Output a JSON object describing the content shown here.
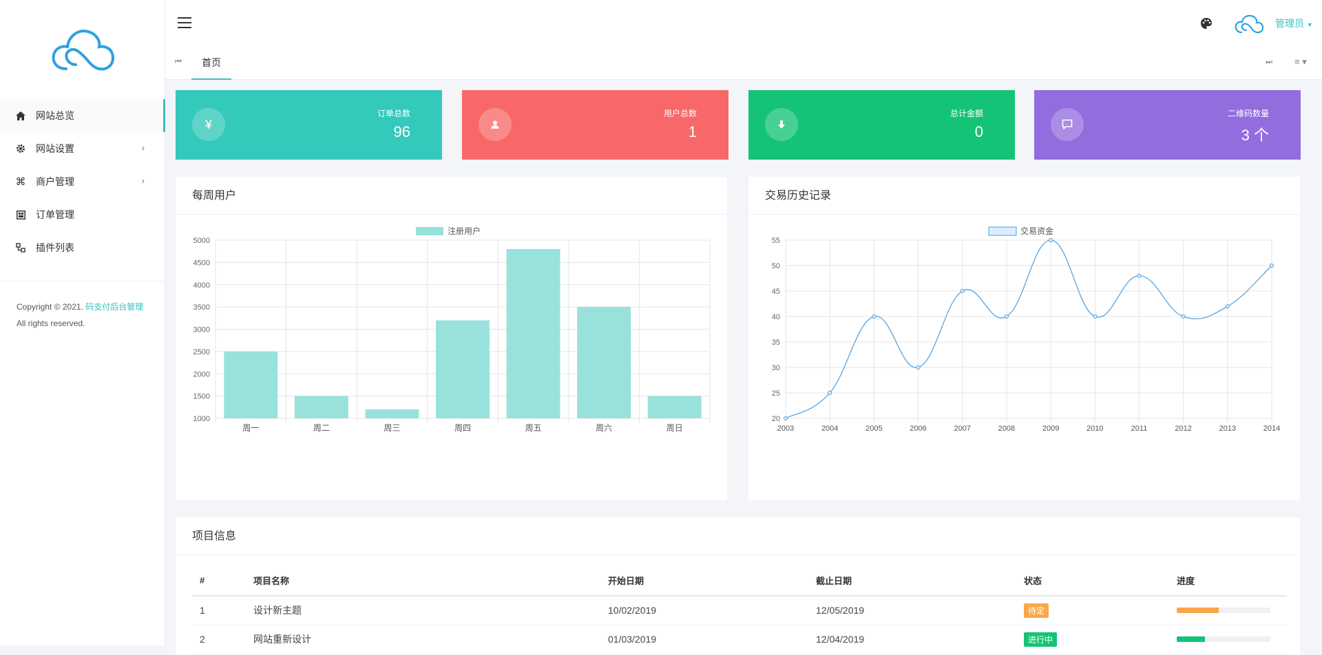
{
  "sidebar": {
    "items": [
      {
        "label": "网站总览",
        "icon": "home-icon",
        "active": true,
        "has_children": false
      },
      {
        "label": "网站设置",
        "icon": "gear-icon",
        "active": false,
        "has_children": true
      },
      {
        "label": "商户管理",
        "icon": "command-icon",
        "active": false,
        "has_children": true
      },
      {
        "label": "订单管理",
        "icon": "grid-icon",
        "active": false,
        "has_children": false
      },
      {
        "label": "插件列表",
        "icon": "plugin-icon",
        "active": false,
        "has_children": false
      }
    ],
    "copyright_prefix": "Copyright © 2021.",
    "copyright_link": "码支付后台管理",
    "copyright_suffix": "All rights reserved."
  },
  "header": {
    "admin_label": "管理员",
    "home_tab": "首页"
  },
  "colors": {
    "accent": "#36c2c0",
    "red": "#f96868",
    "green": "#15c377",
    "purple": "#926dde",
    "warning": "#faa64b"
  },
  "stats": [
    {
      "label": "订单总数",
      "value": "96",
      "icon": "yen-icon",
      "color": "#33cabb"
    },
    {
      "label": "用户总数",
      "value": "1",
      "icon": "user-icon",
      "color": "#f96868"
    },
    {
      "label": "总计金额",
      "value": "0",
      "icon": "download-icon",
      "color": "#15c377"
    },
    {
      "label": "二维码数量",
      "value": "3 个",
      "icon": "comment-icon",
      "color": "#926dde"
    }
  ],
  "charts": {
    "weekly_title": "每周用户",
    "history_title": "交易历史记录"
  },
  "chart_data": [
    {
      "type": "bar",
      "title": "每周用户",
      "categories": [
        "周一",
        "周二",
        "周三",
        "周四",
        "周五",
        "周六",
        "周日"
      ],
      "series": [
        {
          "name": "注册用户",
          "values": [
            2500,
            1500,
            1200,
            3200,
            4800,
            3500,
            1500
          ]
        }
      ],
      "ylim": [
        1000,
        5000
      ],
      "yticks": [
        1000,
        1500,
        2000,
        2500,
        3000,
        3500,
        4000,
        4500,
        5000
      ],
      "grid": true,
      "legend": "top-center"
    },
    {
      "type": "line",
      "title": "交易历史记录",
      "x": [
        "2003",
        "2004",
        "2005",
        "2006",
        "2007",
        "2008",
        "2009",
        "2010",
        "2011",
        "2012",
        "2013",
        "2014"
      ],
      "series": [
        {
          "name": "交易资金",
          "values": [
            20,
            25,
            40,
            30,
            45,
            40,
            55,
            40,
            48,
            40,
            42,
            50
          ]
        }
      ],
      "ylim": [
        20,
        55
      ],
      "yticks": [
        20,
        25,
        30,
        35,
        40,
        45,
        50,
        55
      ],
      "grid": true,
      "legend": "top-center"
    }
  ],
  "projects": {
    "title": "项目信息",
    "headers": [
      "#",
      "项目名称",
      "开始日期",
      "截止日期",
      "状态",
      "进度"
    ],
    "rows": [
      {
        "no": "1",
        "name": "设计新主题",
        "start": "10/02/2019",
        "end": "12/05/2019",
        "status": "待定",
        "status_color": "#faa64b",
        "progress": 0.45,
        "progress_color": "#faa64b"
      },
      {
        "no": "2",
        "name": "网站重新设计",
        "start": "01/03/2019",
        "end": "12/04/2019",
        "status": "进行中",
        "status_color": "#15c377",
        "progress": 0.3,
        "progress_color": "#15c377"
      }
    ]
  }
}
